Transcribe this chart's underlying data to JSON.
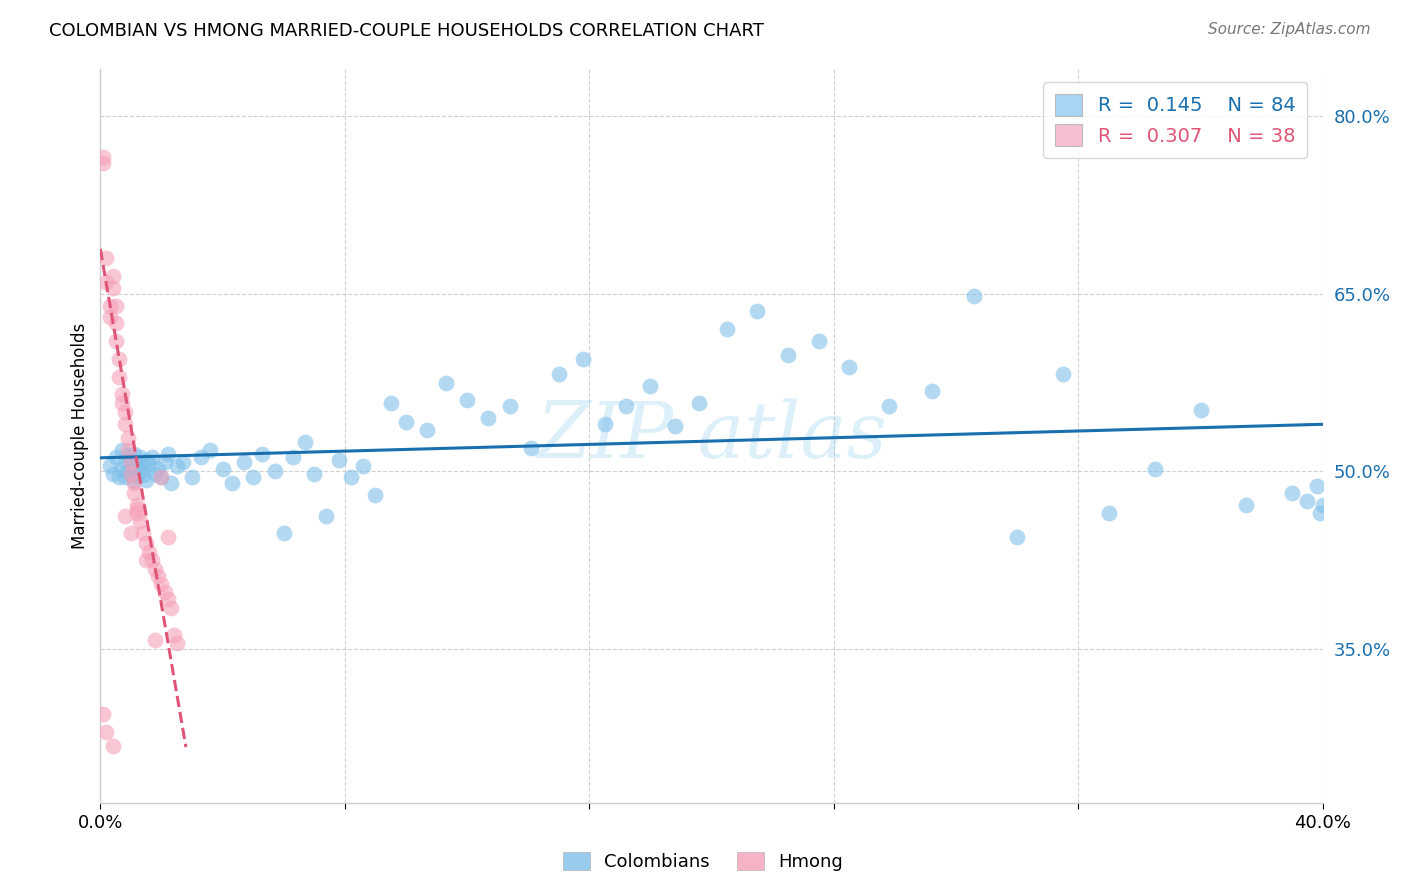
{
  "title": "COLOMBIAN VS HMONG MARRIED-COUPLE HOUSEHOLDS CORRELATION CHART",
  "source": "Source: ZipAtlas.com",
  "ylabel": "Married-couple Households",
  "watermark": "ZIP atlas",
  "xlim": [
    0.0,
    0.4
  ],
  "ylim": [
    0.22,
    0.84
  ],
  "yticks": [
    0.35,
    0.5,
    0.65,
    0.8
  ],
  "ytick_labels": [
    "35.0%",
    "50.0%",
    "65.0%",
    "80.0%"
  ],
  "colombians_R": 0.145,
  "colombians_N": 84,
  "hmong_R": 0.307,
  "hmong_N": 38,
  "blue_color": "#7fbfea",
  "pink_color": "#f5a0b8",
  "blue_line_color": "#1a6faf",
  "pink_line_color": "#e05575",
  "background_color": "#ffffff",
  "legend_blue_face": "#a8d4f5",
  "legend_pink_face": "#f5c0d0",
  "colombians_x": [
    0.003,
    0.004,
    0.005,
    0.006,
    0.007,
    0.007,
    0.008,
    0.008,
    0.009,
    0.009,
    0.01,
    0.01,
    0.011,
    0.011,
    0.012,
    0.012,
    0.013,
    0.013,
    0.014,
    0.014,
    0.015,
    0.015,
    0.016,
    0.017,
    0.018,
    0.019,
    0.02,
    0.021,
    0.022,
    0.023,
    0.025,
    0.027,
    0.03,
    0.033,
    0.036,
    0.04,
    0.043,
    0.047,
    0.05,
    0.053,
    0.057,
    0.06,
    0.063,
    0.067,
    0.07,
    0.074,
    0.078,
    0.082,
    0.086,
    0.09,
    0.095,
    0.1,
    0.107,
    0.113,
    0.12,
    0.127,
    0.134,
    0.141,
    0.15,
    0.158,
    0.165,
    0.172,
    0.18,
    0.188,
    0.196,
    0.205,
    0.215,
    0.225,
    0.235,
    0.245,
    0.258,
    0.272,
    0.286,
    0.3,
    0.315,
    0.33,
    0.345,
    0.36,
    0.375,
    0.39,
    0.395,
    0.398,
    0.399,
    0.4
  ],
  "colombians_y": [
    0.505,
    0.498,
    0.512,
    0.495,
    0.518,
    0.502,
    0.508,
    0.495,
    0.514,
    0.5,
    0.51,
    0.497,
    0.515,
    0.492,
    0.508,
    0.496,
    0.512,
    0.5,
    0.497,
    0.505,
    0.51,
    0.493,
    0.507,
    0.512,
    0.498,
    0.502,
    0.495,
    0.508,
    0.515,
    0.49,
    0.505,
    0.508,
    0.495,
    0.512,
    0.518,
    0.502,
    0.49,
    0.508,
    0.495,
    0.515,
    0.5,
    0.448,
    0.512,
    0.525,
    0.498,
    0.462,
    0.51,
    0.495,
    0.505,
    0.48,
    0.558,
    0.542,
    0.535,
    0.575,
    0.56,
    0.545,
    0.555,
    0.52,
    0.582,
    0.595,
    0.54,
    0.555,
    0.572,
    0.538,
    0.558,
    0.62,
    0.635,
    0.598,
    0.61,
    0.588,
    0.555,
    0.568,
    0.648,
    0.445,
    0.582,
    0.465,
    0.502,
    0.552,
    0.472,
    0.482,
    0.475,
    0.488,
    0.465,
    0.472
  ],
  "hmong_x": [
    0.001,
    0.001,
    0.002,
    0.002,
    0.003,
    0.003,
    0.004,
    0.004,
    0.005,
    0.005,
    0.005,
    0.006,
    0.006,
    0.007,
    0.007,
    0.008,
    0.008,
    0.009,
    0.009,
    0.01,
    0.01,
    0.011,
    0.011,
    0.012,
    0.012,
    0.013,
    0.014,
    0.015,
    0.016,
    0.017,
    0.018,
    0.019,
    0.02,
    0.021,
    0.022,
    0.023,
    0.024,
    0.025
  ],
  "hmong_y": [
    0.765,
    0.76,
    0.68,
    0.66,
    0.64,
    0.63,
    0.665,
    0.655,
    0.64,
    0.625,
    0.61,
    0.595,
    0.58,
    0.565,
    0.558,
    0.55,
    0.54,
    0.528,
    0.518,
    0.508,
    0.498,
    0.49,
    0.482,
    0.472,
    0.465,
    0.458,
    0.448,
    0.44,
    0.432,
    0.425,
    0.418,
    0.412,
    0.405,
    0.398,
    0.392,
    0.385,
    0.362,
    0.355
  ],
  "hmong_extra_x": [
    0.001,
    0.002,
    0.004,
    0.008,
    0.01,
    0.012,
    0.015,
    0.018,
    0.02,
    0.022
  ],
  "hmong_extra_y": [
    0.295,
    0.28,
    0.268,
    0.462,
    0.448,
    0.468,
    0.425,
    0.358,
    0.495,
    0.445
  ]
}
